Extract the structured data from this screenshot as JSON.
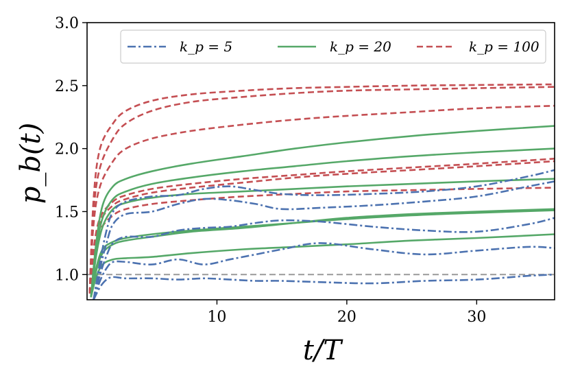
{
  "chart_data": {
    "type": "line",
    "xlabel": "t/T",
    "ylabel": "p_b(t)",
    "xlim": [
      0,
      36
    ],
    "ylim": [
      0.8,
      3.0
    ],
    "xticks": [
      10,
      20,
      30
    ],
    "yticks": [
      1.0,
      1.5,
      2.0,
      2.5,
      3.0
    ],
    "xtick_labels": [
      "10",
      "20",
      "30"
    ],
    "ytick_labels": [
      "1.0",
      "1.5",
      "2.0",
      "2.5",
      "3.0"
    ],
    "grid": false,
    "legend_location": "top",
    "legend": [
      {
        "key": "kp5",
        "label": "k_p = 5",
        "color": "#4c72b0",
        "dash": "dashdot"
      },
      {
        "key": "kp20",
        "label": "k_p = 20",
        "color": "#55a868",
        "dash": "solid"
      },
      {
        "key": "kp100",
        "label": "k_p = 100",
        "color": "#c44e52",
        "dash": "dashed"
      }
    ],
    "reference_line": {
      "y": 1.0,
      "color": "#999999",
      "dash": "dashed"
    },
    "series": [
      {
        "name": "k_p = 100 (a)",
        "group": "kp100",
        "x": [
          0.2,
          0.5,
          1,
          2,
          3,
          5,
          8,
          12,
          16,
          20,
          25,
          30,
          36
        ],
        "y": [
          0.85,
          1.6,
          2.0,
          2.2,
          2.3,
          2.38,
          2.43,
          2.46,
          2.48,
          2.49,
          2.5,
          2.505,
          2.51
        ]
      },
      {
        "name": "k_p = 100 (b)",
        "group": "kp100",
        "x": [
          0.2,
          0.5,
          1,
          2,
          3,
          5,
          8,
          12,
          16,
          20,
          25,
          30,
          36
        ],
        "y": [
          0.85,
          1.5,
          1.85,
          2.08,
          2.2,
          2.3,
          2.37,
          2.41,
          2.44,
          2.46,
          2.47,
          2.48,
          2.49
        ]
      },
      {
        "name": "k_p = 100 (c)",
        "group": "kp100",
        "x": [
          0.2,
          0.5,
          1,
          2,
          3,
          5,
          8,
          12,
          16,
          20,
          25,
          30,
          36
        ],
        "y": [
          0.85,
          1.4,
          1.7,
          1.9,
          2.0,
          2.08,
          2.14,
          2.19,
          2.23,
          2.26,
          2.29,
          2.32,
          2.34
        ]
      },
      {
        "name": "k_p = 100 (d)",
        "group": "kp100",
        "x": [
          0.2,
          0.5,
          1,
          2,
          3,
          5,
          8,
          12,
          16,
          20,
          25,
          30,
          36
        ],
        "y": [
          0.85,
          1.2,
          1.45,
          1.58,
          1.63,
          1.68,
          1.72,
          1.76,
          1.79,
          1.82,
          1.85,
          1.88,
          1.92
        ]
      },
      {
        "name": "k_p = 100 (e)",
        "group": "kp100",
        "x": [
          0.2,
          0.5,
          1,
          2,
          3,
          5,
          8,
          12,
          16,
          20,
          25,
          30,
          36
        ],
        "y": [
          0.85,
          1.18,
          1.42,
          1.55,
          1.6,
          1.65,
          1.69,
          1.73,
          1.77,
          1.8,
          1.83,
          1.86,
          1.9
        ]
      },
      {
        "name": "k_p = 100 (f)",
        "group": "kp100",
        "x": [
          0.2,
          0.5,
          1,
          2,
          3,
          5,
          8,
          12,
          16,
          20,
          25,
          30,
          36
        ],
        "y": [
          0.85,
          1.12,
          1.35,
          1.47,
          1.52,
          1.56,
          1.59,
          1.62,
          1.64,
          1.66,
          1.67,
          1.68,
          1.69
        ]
      },
      {
        "name": "k_p = 20 (a)",
        "group": "kp20",
        "x": [
          0.3,
          0.7,
          1.2,
          2,
          3,
          5,
          8,
          12,
          16,
          20,
          25,
          30,
          36
        ],
        "y": [
          0.82,
          1.25,
          1.55,
          1.7,
          1.76,
          1.82,
          1.88,
          1.94,
          2.0,
          2.05,
          2.1,
          2.14,
          2.18
        ]
      },
      {
        "name": "k_p = 20 (b)",
        "group": "kp20",
        "x": [
          0.3,
          0.7,
          1.2,
          2,
          3,
          5,
          8,
          12,
          16,
          20,
          25,
          30,
          36
        ],
        "y": [
          0.82,
          1.2,
          1.45,
          1.6,
          1.66,
          1.72,
          1.77,
          1.82,
          1.86,
          1.9,
          1.94,
          1.97,
          2.0
        ]
      },
      {
        "name": "k_p = 20 (c)",
        "group": "kp20",
        "x": [
          0.3,
          0.7,
          1.2,
          2,
          3,
          5,
          8,
          12,
          16,
          20,
          25,
          30,
          36
        ],
        "y": [
          0.82,
          1.15,
          1.38,
          1.52,
          1.57,
          1.61,
          1.64,
          1.66,
          1.68,
          1.7,
          1.72,
          1.74,
          1.76
        ]
      },
      {
        "name": "k_p = 20 (d)",
        "group": "kp20",
        "x": [
          0.3,
          0.7,
          1.2,
          2,
          3,
          5,
          8,
          12,
          16,
          20,
          25,
          30,
          36
        ],
        "y": [
          0.82,
          1.05,
          1.2,
          1.26,
          1.29,
          1.32,
          1.35,
          1.38,
          1.41,
          1.44,
          1.47,
          1.49,
          1.51
        ]
      },
      {
        "name": "k_p = 20 (e)",
        "group": "kp20",
        "x": [
          0.3,
          0.7,
          1.2,
          2,
          3,
          5,
          8,
          12,
          16,
          20,
          25,
          30,
          36
        ],
        "y": [
          0.82,
          1.03,
          1.17,
          1.24,
          1.27,
          1.3,
          1.34,
          1.37,
          1.41,
          1.45,
          1.48,
          1.5,
          1.52
        ]
      },
      {
        "name": "k_p = 20 (f)",
        "group": "kp20",
        "x": [
          0.3,
          0.7,
          1.2,
          2,
          3,
          5,
          8,
          12,
          16,
          20,
          25,
          30,
          36
        ],
        "y": [
          0.82,
          0.98,
          1.08,
          1.12,
          1.13,
          1.14,
          1.17,
          1.2,
          1.22,
          1.24,
          1.27,
          1.29,
          1.32
        ]
      },
      {
        "name": "k_p = 5 (a)",
        "group": "kp5",
        "x": [
          0.5,
          1,
          1.5,
          2,
          3,
          5,
          7,
          9,
          11,
          13,
          15,
          18,
          22,
          26,
          30,
          34,
          36
        ],
        "y": [
          0.8,
          1.1,
          1.35,
          1.5,
          1.58,
          1.62,
          1.63,
          1.68,
          1.7,
          1.67,
          1.64,
          1.63,
          1.64,
          1.66,
          1.7,
          1.78,
          1.83
        ]
      },
      {
        "name": "k_p = 5 (b)",
        "group": "kp5",
        "x": [
          0.5,
          1,
          1.5,
          2,
          3,
          5,
          7,
          9,
          11,
          13,
          15,
          18,
          22,
          26,
          30,
          34,
          36
        ],
        "y": [
          0.8,
          1.05,
          1.25,
          1.4,
          1.48,
          1.5,
          1.56,
          1.6,
          1.59,
          1.56,
          1.52,
          1.53,
          1.55,
          1.58,
          1.62,
          1.7,
          1.74
        ]
      },
      {
        "name": "k_p = 5 (c)",
        "group": "kp5",
        "x": [
          0.5,
          1,
          1.5,
          2,
          3,
          5,
          7,
          9,
          11,
          13,
          15,
          18,
          22,
          26,
          30,
          34,
          36
        ],
        "y": [
          0.8,
          1.0,
          1.15,
          1.25,
          1.3,
          1.3,
          1.35,
          1.37,
          1.38,
          1.41,
          1.43,
          1.42,
          1.38,
          1.35,
          1.34,
          1.4,
          1.45
        ]
      },
      {
        "name": "k_p = 5 (d)",
        "group": "kp5",
        "x": [
          0.5,
          1,
          1.5,
          2,
          3,
          5,
          7,
          9,
          11,
          13,
          15,
          18,
          22,
          26,
          30,
          34,
          36
        ],
        "y": [
          0.8,
          0.95,
          1.05,
          1.1,
          1.1,
          1.08,
          1.12,
          1.08,
          1.12,
          1.16,
          1.2,
          1.25,
          1.2,
          1.16,
          1.19,
          1.22,
          1.21
        ]
      },
      {
        "name": "k_p = 5 (e)",
        "group": "kp5",
        "x": [
          0.5,
          1,
          1.5,
          2,
          3,
          5,
          7,
          9,
          11,
          13,
          15,
          18,
          22,
          26,
          30,
          34,
          36
        ],
        "y": [
          0.8,
          0.9,
          0.96,
          0.98,
          0.97,
          0.97,
          0.96,
          0.97,
          0.96,
          0.95,
          0.95,
          0.94,
          0.93,
          0.95,
          0.96,
          0.99,
          1.0
        ]
      }
    ]
  }
}
